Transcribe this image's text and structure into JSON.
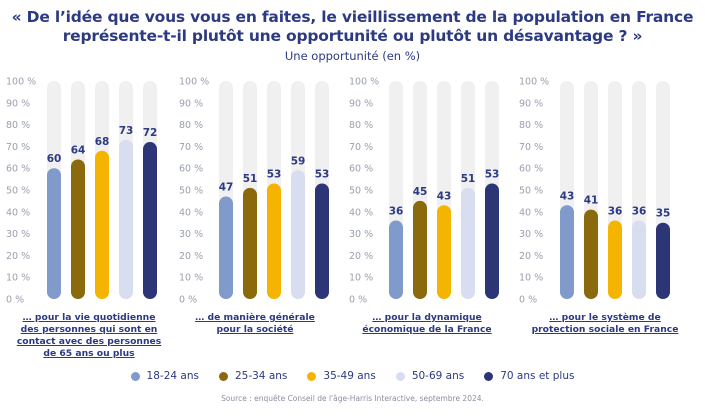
{
  "title": "« De l’idée que vous vous en faites, le vieillissement de la population en France représente-t-il plutôt une opportunité ou plutôt un désavantage ? »",
  "subtitle": "Une opportunité (en %)",
  "source": "Source : enquête Conseil de l'âge-Harris Interactive, septembre 2024.",
  "colors": {
    "track": "#f0f0f0",
    "text": "#2c3a82",
    "tick": "#9aa0ae"
  },
  "chart_data": {
    "type": "bar",
    "ylim": [
      0,
      100
    ],
    "yticks": [
      "0 %",
      "10 %",
      "20 %",
      "30 %",
      "40 %",
      "50 %",
      "60 %",
      "70 %",
      "80 %",
      "90 %",
      "100 %"
    ],
    "grid": false,
    "legend_position": "bottom",
    "series": [
      {
        "name": "18-24 ans",
        "color": "#7f9acb"
      },
      {
        "name": "25-34 ans",
        "color": "#8a6a0c"
      },
      {
        "name": "35-49 ans",
        "color": "#f5b400"
      },
      {
        "name": "50-69 ans",
        "color": "#d8def0"
      },
      {
        "name": "70 ans et plus",
        "color": "#2c3576"
      }
    ],
    "groups": [
      {
        "label": "… pour la vie quotidienne des personnes qui sont en contact avec des personnes de 65 ans ou plus",
        "values": [
          60,
          64,
          68,
          73,
          72
        ]
      },
      {
        "label": "… de manière générale pour la société",
        "values": [
          47,
          51,
          53,
          59,
          53
        ]
      },
      {
        "label": "… pour la dynamique économique de la France",
        "values": [
          36,
          45,
          43,
          51,
          53
        ]
      },
      {
        "label": "… pour le système de protection sociale en France",
        "values": [
          43,
          41,
          36,
          36,
          35
        ]
      }
    ]
  }
}
